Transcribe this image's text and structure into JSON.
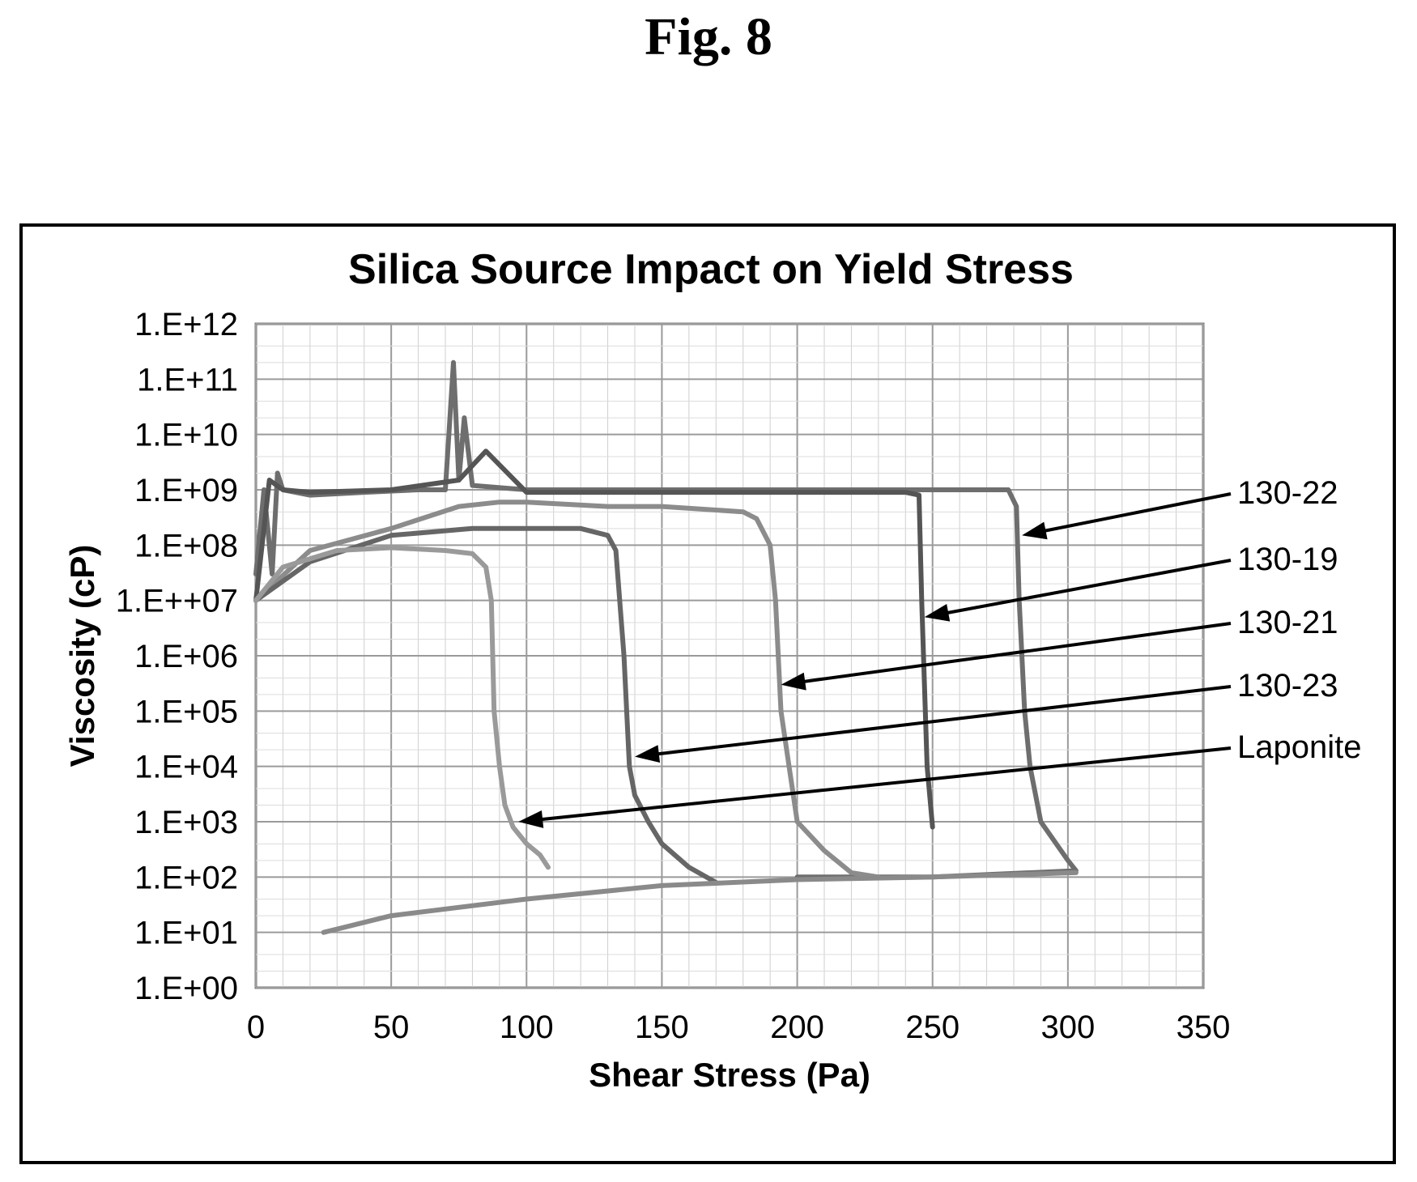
{
  "figure_label": "Fig. 8",
  "chart_data": {
    "type": "line",
    "title": "Silica Source Impact on Yield Stress",
    "xlabel": "Shear Stress (Pa)",
    "ylabel": "Viscosity (cP)",
    "xlim": [
      0,
      350
    ],
    "ylim": [
      1,
      1000000000000.0
    ],
    "y_scale": "log",
    "grid": true,
    "x_ticks": [
      0,
      50,
      100,
      150,
      200,
      250,
      300,
      350
    ],
    "x_tick_labels": [
      "0",
      "50",
      "100",
      "150",
      "200",
      "250",
      "300",
      "350"
    ],
    "y_ticks": [
      1,
      10,
      100,
      1000,
      10000,
      100000,
      1000000,
      10000000,
      100000000,
      1000000000,
      10000000000,
      100000000000,
      1000000000000
    ],
    "y_tick_labels": [
      "1.E+00",
      "1.E+01",
      "1.E+02",
      "1.E+03",
      "1.E+04",
      "1.E+05",
      "1.E+06",
      "1.E++07",
      "1.E+08",
      "1.E+09",
      "1.E+10",
      "1.E+11",
      "1.E+12"
    ],
    "series": [
      {
        "name": "130-22",
        "color": "#6e6e6e",
        "x": [
          0,
          3,
          6,
          8,
          10,
          20,
          40,
          60,
          70,
          73,
          75,
          77,
          80,
          100,
          150,
          200,
          250,
          270,
          278,
          281,
          282,
          284,
          286,
          290,
          300,
          303,
          250,
          200
        ],
        "y": [
          30000000,
          1000000000,
          30000000,
          2000000000,
          1000000000,
          800000000,
          900000000,
          1000000000,
          1000000000,
          200000000000,
          1500000000,
          20000000000,
          1200000000,
          1000000000,
          1000000000,
          1000000000,
          1000000000,
          1000000000,
          1000000000,
          500000000,
          10000000,
          100000,
          10000,
          1000,
          200,
          130,
          100,
          100
        ]
      },
      {
        "name": "130-19",
        "color": "#555555",
        "x": [
          0,
          5,
          10,
          20,
          50,
          75,
          85,
          100,
          150,
          200,
          240,
          245,
          246,
          248,
          250
        ],
        "y": [
          10000000,
          1500000000,
          1000000000,
          900000000,
          1000000000,
          1500000000,
          5000000000,
          900000000,
          900000000,
          900000000,
          900000000,
          800000000,
          10000000,
          10000,
          800
        ]
      },
      {
        "name": "130-21",
        "color": "#8c8c8c",
        "x": [
          0,
          20,
          50,
          75,
          90,
          100,
          130,
          150,
          180,
          185,
          190,
          192,
          194,
          197,
          200,
          210,
          220,
          230
        ],
        "y": [
          10000000,
          80000000,
          200000000,
          500000000,
          600000000,
          600000000,
          500000000,
          500000000,
          400000000,
          300000000,
          100000000,
          10000000,
          100000,
          10000,
          1000,
          300,
          120,
          100
        ]
      },
      {
        "name": "130-23",
        "color": "#666666",
        "x": [
          0,
          20,
          50,
          80,
          100,
          120,
          130,
          133,
          136,
          138,
          140,
          145,
          150,
          160,
          170
        ],
        "y": [
          10000000,
          50000000,
          150000000,
          200000000,
          200000000,
          200000000,
          150000000,
          80000000,
          1000000,
          10000,
          3000,
          1000,
          400,
          150,
          80
        ]
      },
      {
        "name": "Laponite",
        "color": "#9a9a9a",
        "x": [
          0,
          10,
          30,
          50,
          70,
          80,
          85,
          87,
          88,
          90,
          92,
          95,
          100,
          105,
          108
        ],
        "y": [
          10000000,
          40000000,
          80000000,
          90000000,
          80000000,
          70000000,
          40000000,
          10000000,
          100000,
          10000,
          2000,
          800,
          400,
          250,
          150
        ]
      },
      {
        "name": "",
        "color": "#8a8a8a",
        "x": [
          25,
          50,
          100,
          150,
          200,
          250,
          303
        ],
        "y": [
          10,
          20,
          40,
          70,
          90,
          100,
          120
        ]
      }
    ],
    "annotations": [
      {
        "text": "130-22",
        "x": 283,
        "y": 150000000
      },
      {
        "text": "130-19",
        "x": 247,
        "y": 5000000
      },
      {
        "text": "130-21",
        "x": 194,
        "y": 300000
      },
      {
        "text": "130-23",
        "x": 140,
        "y": 15000
      },
      {
        "text": "Laponite",
        "x": 97,
        "y": 1000
      }
    ]
  }
}
